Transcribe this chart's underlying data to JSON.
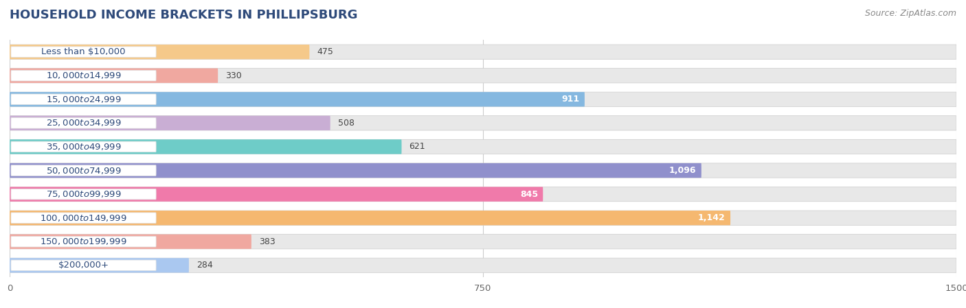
{
  "title": "HOUSEHOLD INCOME BRACKETS IN PHILLIPSBURG",
  "source": "Source: ZipAtlas.com",
  "categories": [
    "Less than $10,000",
    "$10,000 to $14,999",
    "$15,000 to $24,999",
    "$25,000 to $34,999",
    "$35,000 to $49,999",
    "$50,000 to $74,999",
    "$75,000 to $99,999",
    "$100,000 to $149,999",
    "$150,000 to $199,999",
    "$200,000+"
  ],
  "values": [
    475,
    330,
    911,
    508,
    621,
    1096,
    845,
    1142,
    383,
    284
  ],
  "colors": [
    "#f5c98a",
    "#f0a8a0",
    "#85b8e0",
    "#c9aed4",
    "#6eccc8",
    "#9090cc",
    "#f07aaa",
    "#f5b870",
    "#f0a8a0",
    "#aac8f0"
  ],
  "xlim": [
    0,
    1500
  ],
  "xticks": [
    0,
    750,
    1500
  ],
  "background_color": "#ffffff",
  "bar_background_color": "#e8e8e8",
  "label_bg_color": "#ffffff",
  "value_inside_threshold": 800,
  "title_fontsize": 13,
  "label_fontsize": 9.5,
  "value_fontsize": 9,
  "source_fontsize": 9,
  "title_color": "#2e4a7a",
  "label_color": "#2e4a7a",
  "source_color": "#888888"
}
